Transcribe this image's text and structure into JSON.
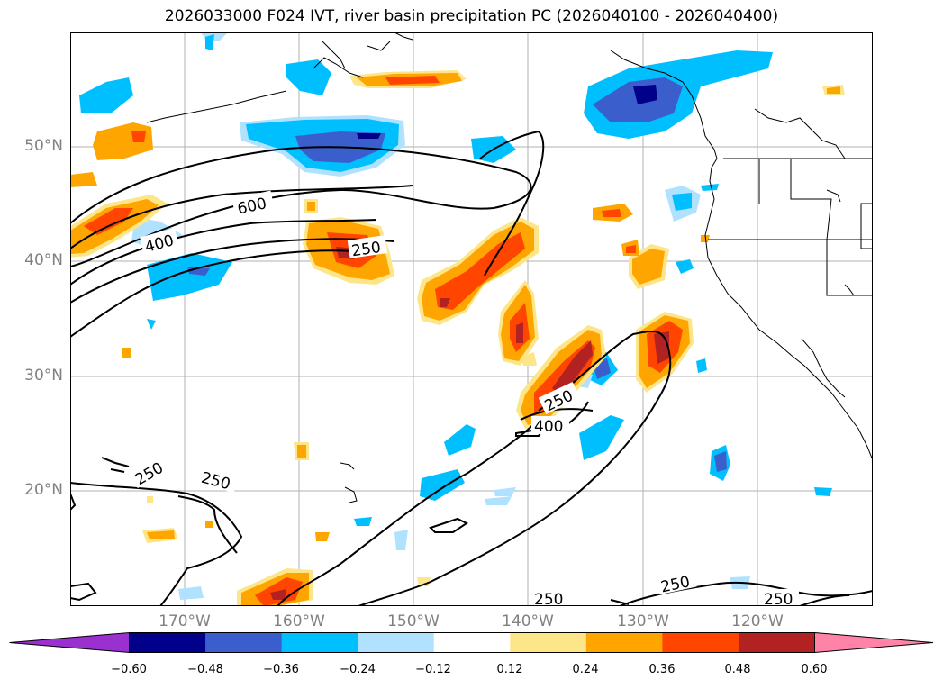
{
  "title": "2026033000 F024 IVT, river basin precipitation PC (2026040100 - 2026040400)",
  "latitude_labels": [
    "50°N",
    "40°N",
    "30°N",
    "20°N"
  ],
  "longitude_labels": [
    "170°W",
    "160°W",
    "150°W",
    "140°W",
    "130°W",
    "120°W"
  ],
  "colorbar": {
    "ticks": [
      "−0.60",
      "−0.48",
      "−0.36",
      "−0.24",
      "−0.12",
      "0.12",
      "0.24",
      "0.36",
      "0.48",
      "0.60"
    ],
    "colors": [
      "#9b30d0",
      "#00008b",
      "#3a5fcd",
      "#00bfff",
      "#b0e2ff",
      "#ffffff",
      "#fde68a",
      "#ffa500",
      "#ff4500",
      "#b22222",
      "#ff83a8"
    ]
  },
  "contour_labels": {
    "c600": "600",
    "c400a": "400",
    "c250a": "250",
    "c250b": "250",
    "c400b": "400",
    "c250c": "250",
    "c250d": "250",
    "c250e": "250",
    "c250f": "250",
    "c250g": "250"
  }
}
